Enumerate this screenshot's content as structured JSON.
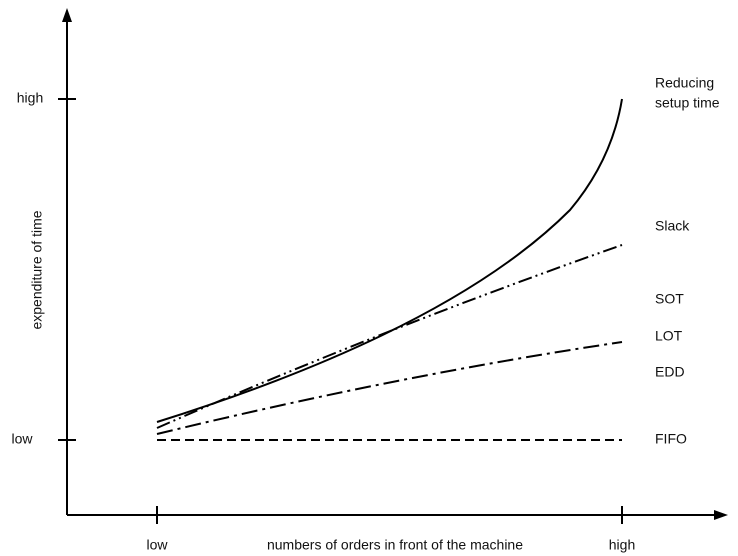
{
  "y_axis": {
    "title": "expenditure of time",
    "ticks": [
      "high",
      "low"
    ]
  },
  "x_axis": {
    "title": "numbers of orders in front of the machine",
    "ticks": [
      "low",
      "high"
    ]
  },
  "curve_labels": {
    "reducing_setup_time": [
      "Reducing",
      "setup time"
    ],
    "slack": "Slack",
    "sot": "SOT",
    "lot": "LOT",
    "edd": "EDD",
    "fifo": "FIFO"
  }
}
